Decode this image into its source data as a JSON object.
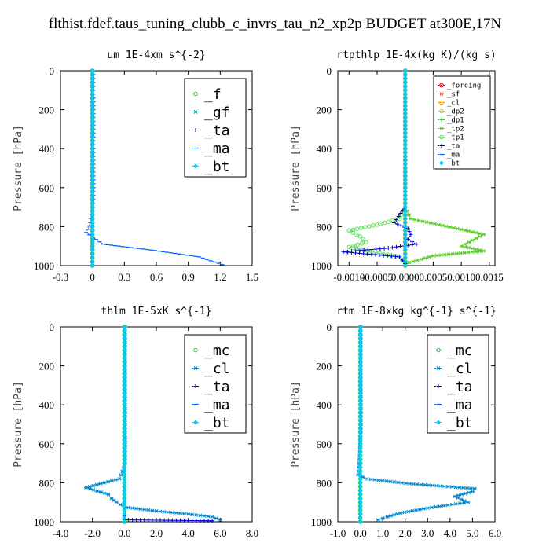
{
  "suptitle": "flthist.fdef.taus_tuning_clubb_c_invrs_tau_n2_xp2p  BUDGET at300E,17N",
  "chart_data": [
    {
      "type": "line",
      "title": "um  1E-4xm s^{-2}",
      "ylabel": "Pressure [hPa]",
      "xlim": [
        -0.3,
        1.5
      ],
      "ylim": [
        1000,
        0
      ],
      "xticks": [
        "-0.3",
        "0",
        "0.3",
        "0.6",
        "0.9",
        "1.2",
        "1.5"
      ],
      "yticks": [
        "0",
        "200",
        "400",
        "600",
        "800",
        "1000"
      ],
      "legend_size": "large",
      "series": [
        {
          "name": "_f",
          "color": "#33cc33",
          "marker": "circle",
          "x": [
            0,
            0,
            0,
            0,
            0,
            0,
            0,
            0,
            0,
            0,
            0
          ],
          "y": [
            0,
            100,
            200,
            300,
            400,
            500,
            600,
            700,
            800,
            900,
            1000
          ]
        },
        {
          "name": "_gf",
          "color": "#009999",
          "marker": "star",
          "x": [
            0,
            0,
            0,
            0,
            0,
            0,
            0,
            0,
            0,
            0,
            0
          ],
          "y": [
            0,
            100,
            200,
            300,
            400,
            500,
            600,
            700,
            800,
            900,
            1000
          ]
        },
        {
          "name": "_ta",
          "color": "#0000cc",
          "marker": "plus",
          "x": [
            0,
            0,
            0,
            0,
            0,
            0,
            0,
            0,
            0,
            0,
            0
          ],
          "y": [
            0,
            100,
            200,
            300,
            400,
            500,
            600,
            700,
            800,
            900,
            1000
          ]
        },
        {
          "name": "_ma",
          "color": "#0066ff",
          "marker": "dash",
          "x": [
            0.01,
            0.01,
            0.01,
            0.01,
            0.01,
            0.01,
            0.01,
            0.01,
            -0.02,
            -0.06,
            0.1,
            0.55,
            1.0,
            1.22
          ],
          "y": [
            0,
            100,
            200,
            300,
            400,
            500,
            600,
            700,
            780,
            830,
            890,
            920,
            955,
            995
          ]
        },
        {
          "name": "_bt",
          "color": "#00ccff",
          "marker": "diamond",
          "x": [
            0,
            0,
            0,
            0,
            0,
            0,
            0,
            0,
            0,
            0,
            0
          ],
          "y": [
            0,
            100,
            200,
            300,
            400,
            500,
            600,
            700,
            800,
            900,
            1000
          ]
        }
      ]
    },
    {
      "type": "line",
      "title": "rtpthlp  1E-4x(kg K)/(kg s)",
      "ylabel": "Pressure [hPa]",
      "xlim": [
        -0.0012,
        0.0016
      ],
      "ylim": [
        1000,
        0
      ],
      "xticks": [
        "-0.0010",
        "-0.0005",
        "0.0000",
        "0.0005",
        "0.0010",
        "0.0015"
      ],
      "yticks": [
        "0",
        "200",
        "400",
        "600",
        "800",
        "1000"
      ],
      "legend_size": "small",
      "series": [
        {
          "name": "_forcing",
          "color": "#cc0000",
          "marker": "circle",
          "x": [
            0,
            0,
            0,
            0,
            0,
            0,
            0,
            0,
            0,
            0,
            0
          ],
          "y": [
            0,
            100,
            200,
            300,
            400,
            500,
            600,
            700,
            800,
            900,
            1000
          ]
        },
        {
          "name": "_sf",
          "color": "#ff3333",
          "marker": "star",
          "x": [
            0,
            0,
            0,
            0,
            0,
            0,
            0,
            0,
            0,
            0,
            0
          ],
          "y": [
            0,
            100,
            200,
            300,
            400,
            500,
            600,
            700,
            800,
            900,
            1000
          ]
        },
        {
          "name": "_cl",
          "color": "#ff9900",
          "marker": "circle",
          "x": [
            0,
            0,
            0,
            0,
            0,
            0,
            0,
            0,
            0,
            0,
            0
          ],
          "y": [
            0,
            100,
            200,
            300,
            400,
            500,
            600,
            700,
            800,
            900,
            1000
          ]
        },
        {
          "name": "_dp2",
          "color": "#cccc00",
          "marker": "circle",
          "x": [
            0,
            0,
            0,
            0,
            0,
            0,
            0,
            0,
            0,
            0,
            0
          ],
          "y": [
            0,
            100,
            200,
            300,
            400,
            500,
            600,
            700,
            800,
            900,
            1000
          ]
        },
        {
          "name": "_dp1",
          "color": "#33cc33",
          "marker": "plus",
          "x": [
            0,
            0,
            0,
            0,
            0,
            0,
            0,
            0,
            0,
            0,
            0,
            0
          ],
          "y": [
            0,
            100,
            200,
            300,
            400,
            500,
            600,
            700,
            740,
            800,
            900,
            1000
          ]
        },
        {
          "name": "_tp2",
          "color": "#55cc22",
          "marker": "star",
          "x": [
            0,
            0,
            0,
            0,
            0,
            0,
            0,
            0,
            0.0001,
            0.0006,
            0.001,
            0.0014,
            0.0012,
            0.001,
            0.0014,
            0.0005,
            0
          ],
          "y": [
            0,
            100,
            200,
            300,
            400,
            500,
            600,
            700,
            760,
            790,
            815,
            840,
            870,
            900,
            925,
            950,
            990
          ]
        },
        {
          "name": "_tp1",
          "color": "#66dd66",
          "marker": "circle",
          "x": [
            0,
            0,
            0,
            0,
            0,
            0,
            0,
            0,
            -0.0001,
            -0.0005,
            -0.001,
            -0.0008,
            -0.0007,
            -0.001,
            -0.0006,
            -0.0001,
            0
          ],
          "y": [
            0,
            100,
            200,
            300,
            400,
            500,
            600,
            700,
            760,
            790,
            820,
            850,
            880,
            905,
            930,
            955,
            990
          ]
        },
        {
          "name": "_ta",
          "color": "#0000cc",
          "marker": "plus",
          "x": [
            0,
            0,
            0,
            0,
            0,
            0,
            0,
            0,
            -0.0002,
            5e-05,
            0.0001,
            5e-05,
            0.0002,
            -0.0003,
            -0.0011,
            -0.0001,
            0
          ],
          "y": [
            0,
            100,
            200,
            300,
            400,
            500,
            600,
            700,
            780,
            810,
            840,
            865,
            890,
            910,
            930,
            955,
            990
          ]
        },
        {
          "name": "_ma",
          "color": "#0066ff",
          "marker": "dash",
          "x": [
            0,
            0,
            0,
            0,
            0,
            0,
            0,
            0,
            0,
            0,
            0
          ],
          "y": [
            0,
            100,
            200,
            300,
            400,
            500,
            600,
            700,
            800,
            900,
            1000
          ]
        },
        {
          "name": "_bt",
          "color": "#00ccff",
          "marker": "diamond",
          "x": [
            0,
            0,
            0,
            0,
            0,
            0,
            0,
            0,
            0,
            0,
            0
          ],
          "y": [
            0,
            100,
            200,
            300,
            400,
            500,
            600,
            700,
            800,
            900,
            1000
          ]
        }
      ]
    },
    {
      "type": "line",
      "title": "thlm  1E-5xK s^{-1}",
      "ylabel": "Pressure [hPa]",
      "xlim": [
        -4,
        8
      ],
      "ylim": [
        1000,
        0
      ],
      "xticks": [
        "-4.0",
        "-2.0",
        "0.0",
        "2.0",
        "4.0",
        "6.0",
        "8.0"
      ],
      "yticks": [
        "0",
        "200",
        "400",
        "600",
        "800",
        "1000"
      ],
      "legend_size": "large",
      "series": [
        {
          "name": "_mc",
          "color": "#33cc33",
          "marker": "circle",
          "x": [
            0,
            0,
            0,
            0,
            0,
            0,
            0,
            0,
            0,
            0,
            0
          ],
          "y": [
            0,
            100,
            200,
            300,
            400,
            500,
            600,
            700,
            800,
            900,
            1000
          ]
        },
        {
          "name": "_cl",
          "color": "#0088cc",
          "marker": "star",
          "x": [
            0.05,
            0.05,
            0.05,
            0.05,
            0.05,
            0.05,
            0.05,
            0.05,
            -0.3,
            -1.5,
            -2.4,
            -1.0,
            -0.8,
            -0.5,
            0.0,
            2.0,
            4.0,
            5.5,
            6.0
          ],
          "y": [
            0,
            100,
            200,
            300,
            400,
            500,
            600,
            700,
            780,
            805,
            825,
            860,
            880,
            900,
            925,
            945,
            960,
            975,
            990
          ]
        },
        {
          "name": "_ta",
          "color": "#0000cc",
          "marker": "plus",
          "x": [
            0,
            0,
            0,
            0,
            0,
            0,
            0,
            0,
            0,
            0,
            0,
            0,
            5.5
          ],
          "y": [
            0,
            100,
            200,
            300,
            400,
            500,
            600,
            700,
            800,
            900,
            950,
            990,
            995
          ]
        },
        {
          "name": "_ma",
          "color": "#0066ff",
          "marker": "dash",
          "x": [
            0,
            0,
            0,
            0,
            0,
            0,
            0,
            0,
            0,
            0,
            0
          ],
          "y": [
            0,
            100,
            200,
            300,
            400,
            500,
            600,
            700,
            800,
            900,
            1000
          ]
        },
        {
          "name": "_bt",
          "color": "#00ccff",
          "marker": "diamond",
          "x": [
            0,
            0,
            0,
            0,
            0,
            0,
            0,
            0,
            0,
            0,
            0
          ],
          "y": [
            0,
            100,
            200,
            300,
            400,
            500,
            600,
            700,
            800,
            900,
            1000
          ]
        }
      ]
    },
    {
      "type": "line",
      "title": "rtm  1E-8xkg kg^{-1} s^{-1}",
      "ylabel": "Pressure [hPa]",
      "xlim": [
        -1,
        6
      ],
      "ylim": [
        1000,
        0
      ],
      "xticks": [
        "-1.0",
        "0.0",
        "1.0",
        "2.0",
        "3.0",
        "4.0",
        "5.0",
        "6.0"
      ],
      "yticks": [
        "0",
        "200",
        "400",
        "600",
        "800",
        "1000"
      ],
      "legend_size": "large",
      "series": [
        {
          "name": "_mc",
          "color": "#33cc33",
          "marker": "circle",
          "x": [
            0,
            0,
            0,
            0,
            0,
            0,
            0,
            0,
            0,
            0,
            0
          ],
          "y": [
            0,
            100,
            200,
            300,
            400,
            500,
            600,
            700,
            800,
            900,
            1000
          ]
        },
        {
          "name": "_cl",
          "color": "#0088cc",
          "marker": "star",
          "x": [
            0.02,
            0.02,
            0.02,
            0.02,
            0.03,
            0.03,
            0.0,
            -0.05,
            -0.1,
            0.3,
            2.2,
            5.1,
            5.0,
            4.2,
            4.8,
            3.0,
            1.8,
            1.2,
            0.8
          ],
          "y": [
            0,
            100,
            200,
            300,
            400,
            500,
            600,
            700,
            760,
            780,
            805,
            830,
            845,
            870,
            900,
            930,
            955,
            975,
            990
          ]
        },
        {
          "name": "_ta",
          "color": "#0000cc",
          "marker": "plus",
          "x": [
            0,
            0,
            0,
            0,
            0,
            0,
            0,
            0,
            0,
            0,
            0
          ],
          "y": [
            0,
            100,
            200,
            300,
            400,
            500,
            600,
            700,
            800,
            900,
            1000
          ]
        },
        {
          "name": "_ma",
          "color": "#0066ff",
          "marker": "dash",
          "x": [
            0,
            0,
            0,
            0,
            0,
            0,
            0,
            0,
            0,
            0,
            0
          ],
          "y": [
            0,
            100,
            200,
            300,
            400,
            500,
            600,
            700,
            800,
            900,
            1000
          ]
        },
        {
          "name": "_bt",
          "color": "#00ccff",
          "marker": "diamond",
          "x": [
            0,
            0,
            0,
            0,
            0,
            0,
            0,
            0,
            0,
            0,
            0
          ],
          "y": [
            0,
            100,
            200,
            300,
            400,
            500,
            600,
            700,
            800,
            900,
            1000
          ]
        }
      ]
    }
  ]
}
